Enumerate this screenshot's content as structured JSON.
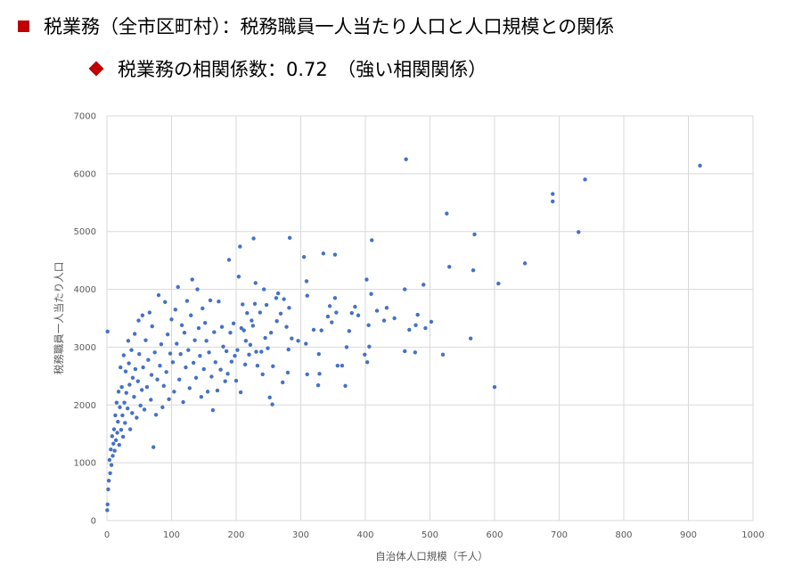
{
  "header": {
    "title": "税業務（全市区町村）：税務職員一人当たり人口と人口規模との関係",
    "subtitle": "税業務の相関係数：0.72　（強い相関関係）"
  },
  "colors": {
    "bullet": "#c00000",
    "points": "#4472c4",
    "grid": "#d9d9d9",
    "axis_text": "#595959"
  },
  "chart_data": {
    "type": "scatter",
    "xlabel": "自治体人口規模（千人）",
    "ylabel": "税務職員一人当たり人口",
    "xlim": [
      0,
      1000
    ],
    "ylim": [
      0,
      7000
    ],
    "x_ticks": [
      0,
      100,
      200,
      300,
      400,
      500,
      600,
      700,
      800,
      900,
      1000
    ],
    "y_ticks": [
      0,
      1000,
      2000,
      3000,
      4000,
      5000,
      6000,
      7000
    ],
    "grid": true,
    "legend": "none",
    "series": [
      {
        "points": [
          [
            918,
            6140
          ],
          [
            463,
            6250
          ],
          [
            740,
            5900
          ],
          [
            690,
            5650
          ],
          [
            690,
            5520
          ],
          [
            730,
            4990
          ],
          [
            526,
            5310
          ],
          [
            569,
            4950
          ],
          [
            567,
            4330
          ],
          [
            530,
            4390
          ],
          [
            647,
            4450
          ],
          [
            606,
            4100
          ],
          [
            600,
            2310
          ],
          [
            563,
            3150
          ],
          [
            520,
            2870
          ],
          [
            502,
            3440
          ],
          [
            493,
            3330
          ],
          [
            490,
            4080
          ],
          [
            481,
            3560
          ],
          [
            478,
            3380
          ],
          [
            477,
            2910
          ],
          [
            468,
            3300
          ],
          [
            461,
            4000
          ],
          [
            461,
            2930
          ],
          [
            445,
            3500
          ],
          [
            433,
            3680
          ],
          [
            429,
            3460
          ],
          [
            418,
            3630
          ],
          [
            410,
            4850
          ],
          [
            409,
            3920
          ],
          [
            406,
            3010
          ],
          [
            405,
            3380
          ],
          [
            403,
            2740
          ],
          [
            402,
            4170
          ],
          [
            399,
            2870
          ],
          [
            389,
            3550
          ],
          [
            384,
            3700
          ],
          [
            379,
            3590
          ],
          [
            375,
            3280
          ],
          [
            371,
            3000
          ],
          [
            369,
            2330
          ],
          [
            364,
            2680
          ],
          [
            357,
            2680
          ],
          [
            355,
            3600
          ],
          [
            353,
            3850
          ],
          [
            353,
            4600
          ],
          [
            348,
            3430
          ],
          [
            345,
            3710
          ],
          [
            342,
            3530
          ],
          [
            335,
            4620
          ],
          [
            332,
            3290
          ],
          [
            329,
            2540
          ],
          [
            328,
            2880
          ],
          [
            327,
            2340
          ],
          [
            320,
            3300
          ],
          [
            310,
            2530
          ],
          [
            308,
            3060
          ],
          [
            310,
            3890
          ],
          [
            309,
            4140
          ],
          [
            305,
            4560
          ],
          [
            296,
            3110
          ],
          [
            286,
            3150
          ],
          [
            283,
            4890
          ],
          [
            282,
            3680
          ],
          [
            281,
            2960
          ],
          [
            280,
            2560
          ],
          [
            278,
            3350
          ],
          [
            274,
            3830
          ],
          [
            272,
            2390
          ],
          [
            269,
            3580
          ],
          [
            265,
            3930
          ],
          [
            263,
            3450
          ],
          [
            262,
            3850
          ],
          [
            257,
            2670
          ],
          [
            256,
            2010
          ],
          [
            254,
            3250
          ],
          [
            252,
            2130
          ],
          [
            249,
            2980
          ],
          [
            247,
            3730
          ],
          [
            245,
            3160
          ],
          [
            243,
            4000
          ],
          [
            241,
            2530
          ],
          [
            239,
            2920
          ],
          [
            237,
            3600
          ],
          [
            233,
            2680
          ],
          [
            231,
            2920
          ],
          [
            230,
            4110
          ],
          [
            229,
            3750
          ],
          [
            226,
            3370
          ],
          [
            227,
            4880
          ],
          [
            224,
            3460
          ],
          [
            222,
            3040
          ],
          [
            220,
            2870
          ],
          [
            217,
            3590
          ],
          [
            215,
            3110
          ],
          [
            214,
            2700
          ],
          [
            212,
            3290
          ],
          [
            210,
            3740
          ],
          [
            208,
            3330
          ],
          [
            207,
            2220
          ],
          [
            206,
            4740
          ],
          [
            204,
            4220
          ],
          [
            202,
            2950
          ],
          [
            200,
            2420
          ],
          [
            198,
            2850
          ],
          [
            196,
            3410
          ],
          [
            193,
            2750
          ],
          [
            191,
            3250
          ],
          [
            189,
            4510
          ],
          [
            187,
            2540
          ],
          [
            185,
            2930
          ],
          [
            183,
            2410
          ],
          [
            180,
            3010
          ],
          [
            178,
            3350
          ],
          [
            176,
            2610
          ],
          [
            173,
            3790
          ],
          [
            171,
            2250
          ],
          [
            168,
            2740
          ],
          [
            166,
            3260
          ],
          [
            164,
            1910
          ],
          [
            162,
            2490
          ],
          [
            160,
            3810
          ],
          [
            158,
            2910
          ],
          [
            156,
            2230
          ],
          [
            154,
            3110
          ],
          [
            152,
            3420
          ],
          [
            150,
            2620
          ],
          [
            148,
            3670
          ],
          [
            146,
            2140
          ],
          [
            144,
            2850
          ],
          [
            142,
            3330
          ],
          [
            140,
            4000
          ],
          [
            138,
            2470
          ],
          [
            136,
            3120
          ],
          [
            134,
            2730
          ],
          [
            132,
            4170
          ],
          [
            130,
            3550
          ],
          [
            128,
            2290
          ],
          [
            126,
            2950
          ],
          [
            124,
            3800
          ],
          [
            122,
            2650
          ],
          [
            120,
            3250
          ],
          [
            118,
            2050
          ],
          [
            116,
            3380
          ],
          [
            114,
            2880
          ],
          [
            112,
            2440
          ],
          [
            110,
            4040
          ],
          [
            108,
            3060
          ],
          [
            106,
            3650
          ],
          [
            104,
            2230
          ],
          [
            102,
            2740
          ],
          [
            100,
            3480
          ],
          [
            98,
            2890
          ],
          [
            96,
            2100
          ],
          [
            94,
            3220
          ],
          [
            92,
            2570
          ],
          [
            90,
            3780
          ],
          [
            88,
            2330
          ],
          [
            86,
            1960
          ],
          [
            84,
            3050
          ],
          [
            82,
            2680
          ],
          [
            80,
            3900
          ],
          [
            78,
            2440
          ],
          [
            76,
            1830
          ],
          [
            74,
            2910
          ],
          [
            72,
            1270
          ],
          [
            70,
            3360
          ],
          [
            69,
            2520
          ],
          [
            68,
            2090
          ],
          [
            66,
            3600
          ],
          [
            64,
            2780
          ],
          [
            62,
            2310
          ],
          [
            60,
            3120
          ],
          [
            58,
            1920
          ],
          [
            56,
            2650
          ],
          [
            55,
            3550
          ],
          [
            54,
            2260
          ],
          [
            52,
            1990
          ],
          [
            50,
            2880
          ],
          [
            49,
            3460
          ],
          [
            48,
            2410
          ],
          [
            46,
            1780
          ],
          [
            44,
            2620
          ],
          [
            43,
            3230
          ],
          [
            42,
            2140
          ],
          [
            40,
            2470
          ],
          [
            39,
            1860
          ],
          [
            38,
            2950
          ],
          [
            36,
            1580
          ],
          [
            35,
            2350
          ],
          [
            34,
            2720
          ],
          [
            33,
            3110
          ],
          [
            32,
            1940
          ],
          [
            30,
            2210
          ],
          [
            29,
            2580
          ],
          [
            28,
            1690
          ],
          [
            27,
            2040
          ],
          [
            26,
            2860
          ],
          [
            25,
            1450
          ],
          [
            24,
            1820
          ],
          [
            23,
            2310
          ],
          [
            22,
            1570
          ],
          [
            21,
            2650
          ],
          [
            20,
            1960
          ],
          [
            19,
            1310
          ],
          [
            18,
            2230
          ],
          [
            17,
            1710
          ],
          [
            16,
            1520
          ],
          [
            15,
            2040
          ],
          [
            14,
            1390
          ],
          [
            13,
            1820
          ],
          [
            12,
            1210
          ],
          [
            11,
            1580
          ],
          [
            10,
            1330
          ],
          [
            9,
            1120
          ],
          [
            8,
            1460
          ],
          [
            7,
            960
          ],
          [
            6,
            1230
          ],
          [
            5,
            820
          ],
          [
            4,
            1050
          ],
          [
            3,
            690
          ],
          [
            2,
            540
          ],
          [
            1,
            280
          ],
          [
            1,
            3270
          ],
          [
            0.5,
            180
          ]
        ]
      }
    ]
  }
}
